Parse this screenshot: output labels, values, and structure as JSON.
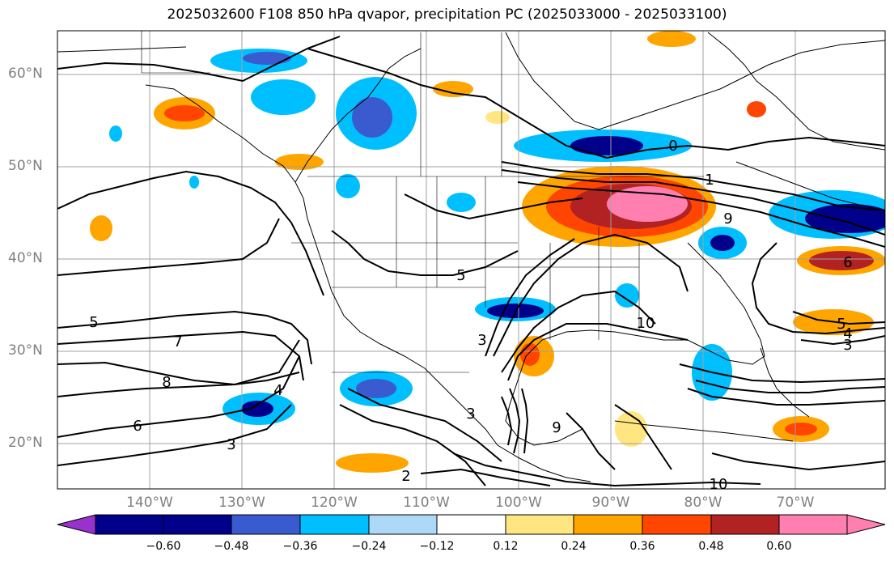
{
  "title": "2025032600 F108 850 hPa qvapor, precipitation PC (2025033000 - 2025033100)",
  "latitude_labels": [
    "60°N",
    "50°N",
    "40°N",
    "30°N",
    "20°N"
  ],
  "longitude_labels": [
    "140°W",
    "130°W",
    "120°W",
    "110°W",
    "100°W",
    "90°W",
    "80°W",
    "70°W"
  ],
  "colorbar": {
    "ticks": [
      "−0.60",
      "−0.48",
      "−0.36",
      "−0.24",
      "−0.12",
      "0.12",
      "0.24",
      "0.36",
      "0.48",
      "0.60"
    ],
    "colors": [
      "#9932cc",
      "#00008b",
      "#3a5bd0",
      "#00bfff",
      "#add8f7",
      "#ffffff",
      "#ffe680",
      "#ffa500",
      "#ff4500",
      "#b22222",
      "#ff80b0"
    ]
  },
  "contour_labels": [
    "0",
    "1",
    "2",
    "3",
    "3",
    "3",
    "3",
    "4",
    "4",
    "5",
    "5",
    "5",
    "6",
    "6",
    "7",
    "8",
    "9",
    "9",
    "10",
    "10"
  ],
  "colors": {
    "coast": "#000000",
    "grid": "#a0a0a0",
    "contour": "#000000"
  }
}
